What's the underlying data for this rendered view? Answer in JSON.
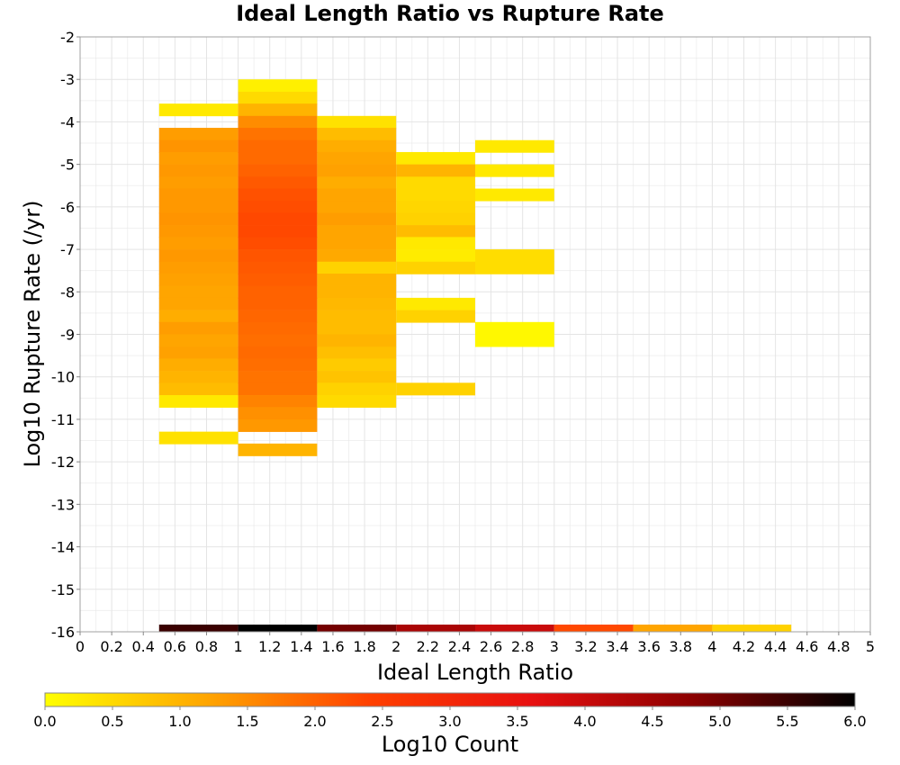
{
  "chart_data": {
    "type": "heatmap",
    "title": "Ideal Length Ratio vs Rupture Rate",
    "xlabel": "Ideal Length Ratio",
    "ylabel": "Log10 Rupture Rate (/yr)",
    "xlim": [
      0,
      5
    ],
    "ylim": [
      -16,
      -2
    ],
    "x_ticks": [
      "0",
      "0.2",
      "0.4",
      "0.6",
      "0.8",
      "1",
      "1.2",
      "1.4",
      "1.6",
      "1.8",
      "2",
      "2.2",
      "2.4",
      "2.6",
      "2.8",
      "3",
      "3.2",
      "3.4",
      "3.6",
      "3.8",
      "4",
      "4.2",
      "4.4",
      "4.6",
      "4.8",
      "5"
    ],
    "y_ticks": [
      "-2",
      "-3",
      "-4",
      "-5",
      "-6",
      "-7",
      "-8",
      "-9",
      "-10",
      "-11",
      "-12",
      "-13",
      "-14",
      "-15",
      "-16"
    ],
    "grid": true,
    "colorbar": {
      "label": "Log10 Count",
      "min": 0,
      "max": 6,
      "ticks": [
        "0.0",
        "0.5",
        "1.0",
        "1.5",
        "2.0",
        "2.5",
        "3.0",
        "3.5",
        "4.0",
        "4.5",
        "5.0",
        "5.5",
        "6.0"
      ],
      "colors": [
        "#ffff00",
        "#ffa500",
        "#ff4000",
        "#e81010",
        "#8b0000",
        "#000000"
      ]
    },
    "bin_width_x": 0.5,
    "bin_height_y": 0.286,
    "columns": [
      {
        "x": 0.5,
        "cells": [
          {
            "y": -3.57,
            "v": 0.3
          },
          {
            "y": -4.14,
            "v": 1.3
          },
          {
            "y": -4.43,
            "v": 1.4
          },
          {
            "y": -4.71,
            "v": 1.3
          },
          {
            "y": -5.0,
            "v": 1.35
          },
          {
            "y": -5.29,
            "v": 1.3
          },
          {
            "y": -5.57,
            "v": 1.35
          },
          {
            "y": -5.86,
            "v": 1.35
          },
          {
            "y": -6.14,
            "v": 1.4
          },
          {
            "y": -6.43,
            "v": 1.35
          },
          {
            "y": -6.71,
            "v": 1.3
          },
          {
            "y": -7.0,
            "v": 1.35
          },
          {
            "y": -7.29,
            "v": 1.3
          },
          {
            "y": -7.57,
            "v": 1.25
          },
          {
            "y": -7.86,
            "v": 1.2
          },
          {
            "y": -8.14,
            "v": 1.2
          },
          {
            "y": -8.43,
            "v": 1.1
          },
          {
            "y": -8.71,
            "v": 1.3
          },
          {
            "y": -9.0,
            "v": 1.2
          },
          {
            "y": -9.29,
            "v": 1.25
          },
          {
            "y": -9.57,
            "v": 1.1
          },
          {
            "y": -9.86,
            "v": 1.0
          },
          {
            "y": -10.14,
            "v": 0.9
          },
          {
            "y": -10.43,
            "v": 0.3
          },
          {
            "y": -11.29,
            "v": 0.4
          }
        ]
      },
      {
        "x": 1.0,
        "cells": [
          {
            "y": -3.0,
            "v": 0.2
          },
          {
            "y": -3.29,
            "v": 0.5
          },
          {
            "y": -3.57,
            "v": 1.0
          },
          {
            "y": -3.86,
            "v": 1.5
          },
          {
            "y": -4.14,
            "v": 1.8
          },
          {
            "y": -4.43,
            "v": 1.9
          },
          {
            "y": -4.71,
            "v": 1.9
          },
          {
            "y": -5.0,
            "v": 2.0
          },
          {
            "y": -5.29,
            "v": 2.1
          },
          {
            "y": -5.57,
            "v": 2.2
          },
          {
            "y": -5.86,
            "v": 2.25
          },
          {
            "y": -6.14,
            "v": 2.3
          },
          {
            "y": -6.43,
            "v": 2.3
          },
          {
            "y": -6.71,
            "v": 2.25
          },
          {
            "y": -7.0,
            "v": 2.15
          },
          {
            "y": -7.29,
            "v": 2.1
          },
          {
            "y": -7.57,
            "v": 2.05
          },
          {
            "y": -7.86,
            "v": 2.0
          },
          {
            "y": -8.14,
            "v": 2.0
          },
          {
            "y": -8.43,
            "v": 1.95
          },
          {
            "y": -8.71,
            "v": 1.9
          },
          {
            "y": -9.0,
            "v": 1.85
          },
          {
            "y": -9.29,
            "v": 1.9
          },
          {
            "y": -9.57,
            "v": 1.85
          },
          {
            "y": -9.86,
            "v": 1.8
          },
          {
            "y": -10.14,
            "v": 1.8
          },
          {
            "y": -10.43,
            "v": 1.6
          },
          {
            "y": -10.71,
            "v": 1.45
          },
          {
            "y": -11.0,
            "v": 1.35
          },
          {
            "y": -11.57,
            "v": 1.0
          }
        ]
      },
      {
        "x": 1.5,
        "cells": [
          {
            "y": -3.86,
            "v": 0.4
          },
          {
            "y": -4.14,
            "v": 0.9
          },
          {
            "y": -4.43,
            "v": 1.1
          },
          {
            "y": -4.71,
            "v": 1.2
          },
          {
            "y": -5.0,
            "v": 1.25
          },
          {
            "y": -5.29,
            "v": 1.1
          },
          {
            "y": -5.57,
            "v": 1.2
          },
          {
            "y": -5.86,
            "v": 1.2
          },
          {
            "y": -6.14,
            "v": 1.3
          },
          {
            "y": -6.43,
            "v": 1.2
          },
          {
            "y": -6.71,
            "v": 1.2
          },
          {
            "y": -7.0,
            "v": 1.15
          },
          {
            "y": -7.29,
            "v": 0.6
          },
          {
            "y": -7.57,
            "v": 1.0
          },
          {
            "y": -7.86,
            "v": 1.0
          },
          {
            "y": -8.14,
            "v": 0.95
          },
          {
            "y": -8.43,
            "v": 0.9
          },
          {
            "y": -8.71,
            "v": 0.9
          },
          {
            "y": -9.0,
            "v": 1.0
          },
          {
            "y": -9.29,
            "v": 0.85
          },
          {
            "y": -9.57,
            "v": 0.7
          },
          {
            "y": -9.86,
            "v": 0.8
          },
          {
            "y": -10.14,
            "v": 0.6
          },
          {
            "y": -10.43,
            "v": 0.5
          }
        ]
      },
      {
        "x": 2.0,
        "cells": [
          {
            "y": -4.71,
            "v": 0.3
          },
          {
            "y": -5.0,
            "v": 1.0
          },
          {
            "y": -5.29,
            "v": 0.5
          },
          {
            "y": -5.57,
            "v": 0.5
          },
          {
            "y": -5.86,
            "v": 0.55
          },
          {
            "y": -6.14,
            "v": 0.6
          },
          {
            "y": -6.43,
            "v": 0.9
          },
          {
            "y": -6.71,
            "v": 0.3
          },
          {
            "y": -7.0,
            "v": 0.25
          },
          {
            "y": -7.29,
            "v": 0.6
          },
          {
            "y": -8.14,
            "v": 0.3
          },
          {
            "y": -8.43,
            "v": 0.6
          },
          {
            "y": -10.14,
            "v": 0.6
          }
        ]
      },
      {
        "x": 2.5,
        "cells": [
          {
            "y": -4.43,
            "v": 0.3
          },
          {
            "y": -5.0,
            "v": 0.3
          },
          {
            "y": -5.57,
            "v": 0.3
          },
          {
            "y": -7.0,
            "v": 0.45
          },
          {
            "y": -7.29,
            "v": 0.45
          },
          {
            "y": -8.71,
            "v": 0.1
          },
          {
            "y": -9.0,
            "v": 0.1
          }
        ]
      }
    ],
    "bottom_row": {
      "y": -16,
      "cells": [
        {
          "x": 0.5,
          "v": 5.5
        },
        {
          "x": 1.0,
          "v": 6.0
        },
        {
          "x": 1.5,
          "v": 5.0
        },
        {
          "x": 2.0,
          "v": 4.4
        },
        {
          "x": 2.5,
          "v": 4.0
        },
        {
          "x": 3.0,
          "v": 2.3
        },
        {
          "x": 3.5,
          "v": 1.2
        },
        {
          "x": 4.0,
          "v": 0.6
        }
      ]
    }
  }
}
